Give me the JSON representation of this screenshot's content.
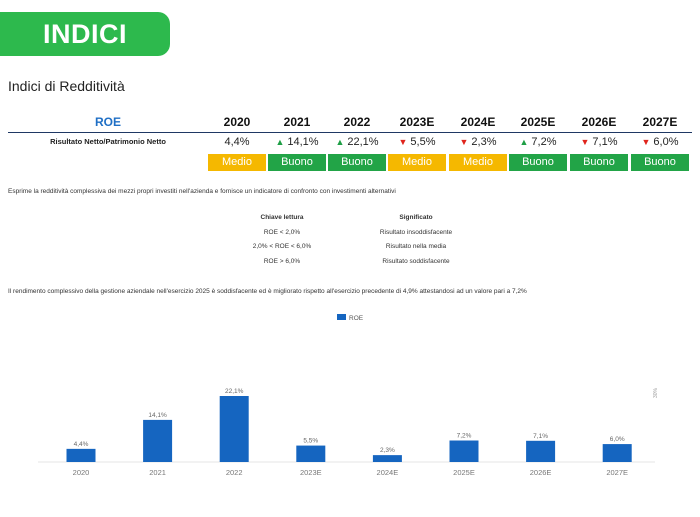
{
  "banner": {
    "title": "INDICI"
  },
  "section_title": "Indici di Redditività",
  "table": {
    "header_label": "ROE",
    "metric_label": "Risultato Netto/Patrimonio Netto",
    "years": [
      "2020",
      "2021",
      "2022",
      "2023E",
      "2024E",
      "2025E",
      "2026E",
      "2027E"
    ],
    "values": [
      "4,4%",
      "14,1%",
      "22,1%",
      "5,5%",
      "2,3%",
      "7,2%",
      "7,1%",
      "6,0%"
    ],
    "trends": [
      "none",
      "up",
      "up",
      "down",
      "down",
      "up",
      "down",
      "down"
    ],
    "ratings": [
      "Medio",
      "Buono",
      "Buono",
      "Medio",
      "Medio",
      "Buono",
      "Buono",
      "Buono"
    ],
    "up_symbol": "▲",
    "down_symbol": "▼"
  },
  "description": "Esprime la redditività complessiva dei mezzi propri investiti nell'azienda e fornisce un indicatore di confronto con investimenti alternativi",
  "key": {
    "head_col1": "Chiave lettura",
    "head_col2": "Significato",
    "rows": [
      {
        "range": "ROE < 2,0%",
        "meaning": "Risultato insoddisfacente"
      },
      {
        "range": "2,0% < ROE < 6,0%",
        "meaning": "Risultato nella media"
      },
      {
        "range": "ROE > 6,0%",
        "meaning": "Risultato soddisfacente"
      }
    ]
  },
  "conclusion": "Il rendimento complessivo della gestione aziendale nell'esercizio 2025 è soddisfacente ed è migliorato rispetto all'esercizio precedente di 4,9% attestandosi ad un valore pari a 7,2%",
  "colors": {
    "rating_medio": "#f5b800",
    "rating_buono": "#22a447",
    "bar": "#1565c0",
    "up": "#1e9e45",
    "down": "#e0241c"
  },
  "chart_data": {
    "type": "bar",
    "categories": [
      "2020",
      "2021",
      "2022",
      "2023E",
      "2024E",
      "2025E",
      "2026E",
      "2027E"
    ],
    "series": [
      {
        "name": "ROE",
        "values": [
          4.4,
          14.1,
          22.1,
          5.5,
          2.3,
          7.2,
          7.1,
          6.0
        ]
      }
    ],
    "data_labels": [
      "4,4%",
      "14,1%",
      "22,1%",
      "5,5%",
      "2,3%",
      "7,2%",
      "7,1%",
      "6,0%"
    ],
    "side_label": "30%",
    "ylim": [
      0,
      30
    ],
    "legend": "top-center",
    "grid": false
  }
}
